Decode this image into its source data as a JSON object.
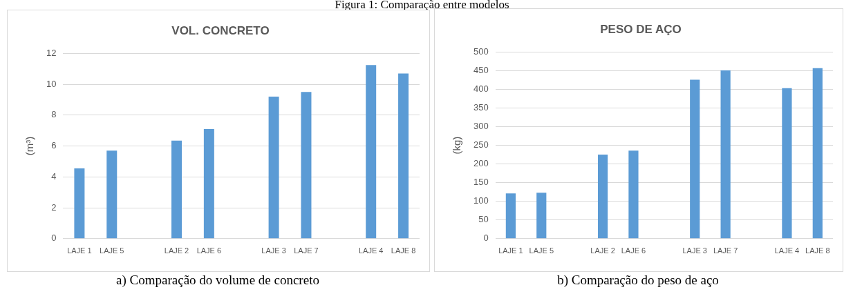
{
  "chart_data": [
    {
      "type": "bar",
      "title": "VOL. CONCRETO",
      "ylabel": "(m³)",
      "categories": [
        "LAJE 1",
        "LAJE 5",
        null,
        "LAJE 2",
        "LAJE 6",
        null,
        "LAJE 3",
        "LAJE 7",
        null,
        "LAJE 4",
        "LAJE 8"
      ],
      "values": [
        4.55,
        5.7,
        null,
        6.35,
        7.1,
        null,
        9.2,
        9.5,
        null,
        11.25,
        10.7
      ],
      "color": "#5b9bd5",
      "ylim": [
        0,
        12
      ],
      "yticks": [
        0,
        2,
        4,
        6,
        8,
        10,
        12
      ],
      "grid": "y",
      "legend": false,
      "annotations": [
        "Figura 1: Comparação entre modelos",
        "a)   Comparação do volume de concreto"
      ]
    },
    {
      "type": "bar",
      "title": "PESO DE AÇO",
      "ylabel": "(kg)",
      "categories": [
        "LAJE 1",
        "LAJE 5",
        null,
        "LAJE 2",
        "LAJE 6",
        null,
        "LAJE 3",
        "LAJE 7",
        null,
        "LAJE 4",
        "LAJE 8"
      ],
      "values": [
        121,
        123,
        null,
        225,
        236,
        null,
        426,
        451,
        null,
        403,
        457
      ],
      "color": "#5b9bd5",
      "ylim": [
        0,
        500
      ],
      "yticks": [
        0,
        50,
        100,
        150,
        200,
        250,
        300,
        350,
        400,
        450,
        500
      ],
      "grid": "y",
      "legend": false,
      "annotations": [
        "b)   Comparação do peso de aço"
      ]
    }
  ]
}
